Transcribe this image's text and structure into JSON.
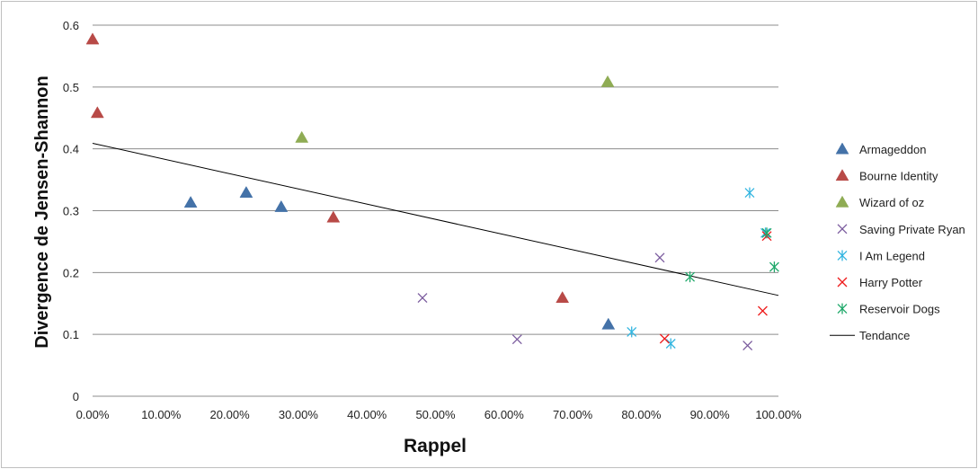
{
  "chart_data": {
    "type": "scatter",
    "title": "",
    "xlabel": "Rappel",
    "ylabel": "Divergence de Jensen-Shannon",
    "xlim": [
      0,
      1
    ],
    "ylim": [
      0,
      0.6
    ],
    "x_ticks": [
      "0.00%",
      "10.00%",
      "20.00%",
      "30.00%",
      "40.00%",
      "50.00%",
      "60.00%",
      "70.00%",
      "80.00%",
      "90.00%",
      "100.00%"
    ],
    "y_ticks": [
      "0",
      "0.1",
      "0.2",
      "0.3",
      "0.4",
      "0.5",
      "0.6"
    ],
    "grid": "horizontal",
    "legend_position": "right",
    "series": [
      {
        "name": "Armageddon",
        "marker": "triangle",
        "color": "#4472a8",
        "points": [
          [
            0.143,
            0.313
          ],
          [
            0.224,
            0.329
          ],
          [
            0.275,
            0.306
          ],
          [
            0.752,
            0.116
          ]
        ]
      },
      {
        "name": "Bourne Identity",
        "marker": "triangle",
        "color": "#b84a47",
        "points": [
          [
            0.0,
            0.577
          ],
          [
            0.007,
            0.458
          ],
          [
            0.351,
            0.289
          ],
          [
            0.685,
            0.159
          ]
        ]
      },
      {
        "name": "Wizard of oz",
        "marker": "triangle",
        "color": "#8fac54",
        "points": [
          [
            0.305,
            0.418
          ],
          [
            0.751,
            0.508
          ]
        ]
      },
      {
        "name": "Saving Private Ryan",
        "marker": "x",
        "color": "#7b5c9e",
        "points": [
          [
            0.481,
            0.159
          ],
          [
            0.619,
            0.092
          ],
          [
            0.827,
            0.224
          ],
          [
            0.955,
            0.082
          ]
        ]
      },
      {
        "name": "I Am Legend",
        "marker": "asterisk",
        "color": "#33b5e0",
        "points": [
          [
            0.786,
            0.104
          ],
          [
            0.843,
            0.085
          ],
          [
            0.958,
            0.329
          ],
          [
            0.981,
            0.264
          ]
        ]
      },
      {
        "name": "Harry Potter",
        "marker": "x",
        "color": "#ee1c1c",
        "points": [
          [
            0.834,
            0.093
          ],
          [
            0.977,
            0.138
          ],
          [
            0.983,
            0.259
          ]
        ]
      },
      {
        "name": "Reservoir Dogs",
        "marker": "asterisk",
        "color": "#1fa86a",
        "points": [
          [
            0.871,
            0.193
          ],
          [
            0.983,
            0.264
          ],
          [
            0.994,
            0.209
          ]
        ]
      }
    ],
    "trendline": {
      "name": "Tendance",
      "color": "#000000",
      "points": [
        [
          0.0,
          0.409
        ],
        [
          1.0,
          0.163
        ]
      ]
    }
  }
}
